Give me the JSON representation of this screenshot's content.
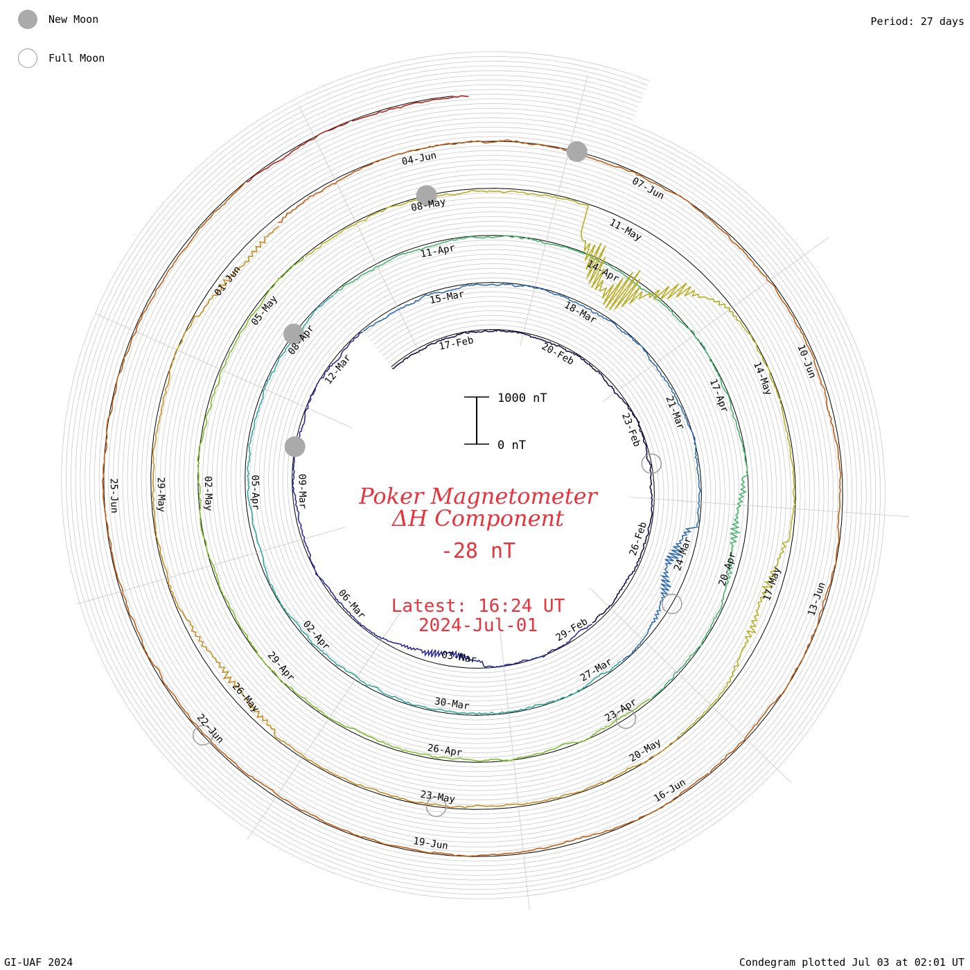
{
  "legend": {
    "new_moon": "New Moon",
    "full_moon": "Full Moon"
  },
  "header": {
    "period": "Period: 27 days"
  },
  "footer": {
    "left": "GI-UAF 2024",
    "right": "Condegram plotted Jul 03 at 02:01 UT"
  },
  "center": {
    "title_line1": "Poker Magnetometer",
    "title_line2": "ΔH Component",
    "current_value": "-28 nT",
    "latest_line1": "Latest: 16:24 UT",
    "latest_line2": "2024-Jul-01"
  },
  "chart_data": {
    "type": "line",
    "title": "Poker Magnetometer ΔH Component",
    "period_days": 27,
    "start_date": "2024-Feb-15",
    "end_date": "2024-Jul-01",
    "current_value_nT": -28,
    "latest_time": "16:24 UT",
    "scale_bar": {
      "top_label": "1000 nT",
      "bottom_label": "0 nT",
      "range_nT": [
        0,
        1000
      ]
    },
    "rotation_date_labels": [
      [
        "17-Feb",
        "20-Feb",
        "23-Feb",
        "26-Feb",
        "29-Feb",
        "03-Mar",
        "06-Mar",
        "09-Mar",
        "12-Mar"
      ],
      [
        "15-Mar",
        "18-Mar",
        "21-Mar",
        "24-Mar",
        "27-Mar",
        "30-Mar",
        "02-Apr",
        "05-Apr",
        "08-Apr"
      ],
      [
        "11-Apr",
        "14-Apr",
        "17-Apr",
        "20-Apr",
        "23-Apr",
        "26-Apr",
        "29-Apr",
        "02-May",
        "05-May"
      ],
      [
        "08-May",
        "11-May",
        "14-May",
        "17-May",
        "20-May",
        "23-May",
        "26-May",
        "29-May",
        "01-Jun"
      ],
      [
        "04-Jun",
        "07-Jun",
        "10-Jun",
        "13-Jun",
        "16-Jun",
        "19-Jun",
        "22-Jun",
        "25-Jun"
      ]
    ],
    "series_colors": [
      "#11104a",
      "#2a2a9c",
      "#2f6bb3",
      "#2ea7a2",
      "#45b46a",
      "#7cbf2a",
      "#b9ad22",
      "#c88a1c",
      "#c45a12",
      "#b8211a"
    ],
    "new_moon_dates": [
      "2024-Mar-10",
      "2024-Apr-08",
      "2024-May-08",
      "2024-Jun-06"
    ],
    "full_moon_dates": [
      "2024-Feb-24",
      "2024-Mar-25",
      "2024-Apr-23",
      "2024-May-23",
      "2024-Jun-22"
    ],
    "disturbances": [
      {
        "date": "2024-Mar-03",
        "peak_nT": 280
      },
      {
        "date": "2024-Mar-24",
        "peak_nT": 500
      },
      {
        "date": "2024-Apr-19",
        "peak_nT": 280
      },
      {
        "date": "2024-May-11",
        "peak_nT": 1900
      },
      {
        "date": "2024-May-17",
        "peak_nT": 320
      },
      {
        "date": "2024-May-26",
        "peak_nT": 250
      },
      {
        "date": "2024-Jun-01",
        "peak_nT": 200
      }
    ]
  }
}
